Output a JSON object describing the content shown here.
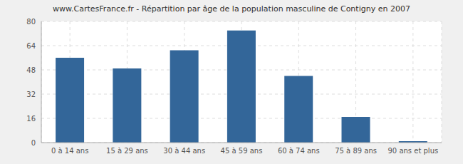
{
  "chart_data": {
    "type": "bar",
    "title": "www.CartesFrance.fr - Répartition par âge de la population masculine de Contigny en 2007",
    "categories": [
      "0 à 14 ans",
      "15 à 29 ans",
      "30 à 44 ans",
      "45 à 59 ans",
      "60 à 74 ans",
      "75 à 89 ans",
      "90 ans et plus"
    ],
    "values": [
      56,
      49,
      61,
      74,
      44,
      17,
      1
    ],
    "color": "#336699",
    "ylim": [
      0,
      80
    ],
    "yticks": [
      0,
      16,
      32,
      48,
      64,
      80
    ],
    "grid": true
  }
}
